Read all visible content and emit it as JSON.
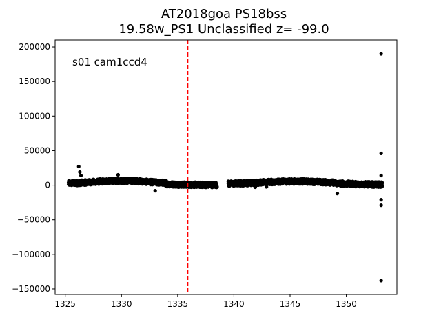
{
  "chart_data": {
    "type": "scatter",
    "title": [
      "AT2018goa  PS18bss",
      "19.58w_PS1 Unclassified z= -99.0"
    ],
    "xlabel": "",
    "ylabel": "",
    "xlim": [
      1324.1,
      1354.5
    ],
    "ylim": [
      -158000,
      210000
    ],
    "xticks": [
      1325,
      1330,
      1335,
      1340,
      1345,
      1350
    ],
    "yticks": [
      -150000,
      -100000,
      -50000,
      0,
      50000,
      100000,
      150000,
      200000
    ],
    "xtick_labels": [
      "1325",
      "1330",
      "1335",
      "1340",
      "1345",
      "1350"
    ],
    "ytick_labels": [
      "−150000",
      "−100000",
      "−50000",
      "0",
      "50000",
      "100000",
      "150000",
      "200000"
    ],
    "annotation": "s01 cam1ccd4",
    "vline": {
      "x": 1335.9,
      "color": "#ff0000",
      "style": "dashed"
    },
    "grid": false,
    "marker_color": "#000000",
    "segments": [
      {
        "x_start": 1325.3,
        "x_end": 1338.5
      },
      {
        "x_start": 1339.5,
        "x_end": 1353.2
      }
    ],
    "outliers": [
      {
        "x": 1326.2,
        "y": 27000
      },
      {
        "x": 1326.3,
        "y": 19000
      },
      {
        "x": 1326.4,
        "y": 14000
      },
      {
        "x": 1329.7,
        "y": 15000
      },
      {
        "x": 1333.0,
        "y": -8000
      },
      {
        "x": 1349.2,
        "y": -12000
      },
      {
        "x": 1341.9,
        "y": -3000
      },
      {
        "x": 1342.9,
        "y": -2500
      },
      {
        "x": 1353.1,
        "y": 190000
      },
      {
        "x": 1353.1,
        "y": 46000
      },
      {
        "x": 1353.1,
        "y": 14000
      },
      {
        "x": 1353.1,
        "y": -21000
      },
      {
        "x": 1353.1,
        "y": -29000
      },
      {
        "x": 1353.1,
        "y": -138000
      }
    ]
  }
}
